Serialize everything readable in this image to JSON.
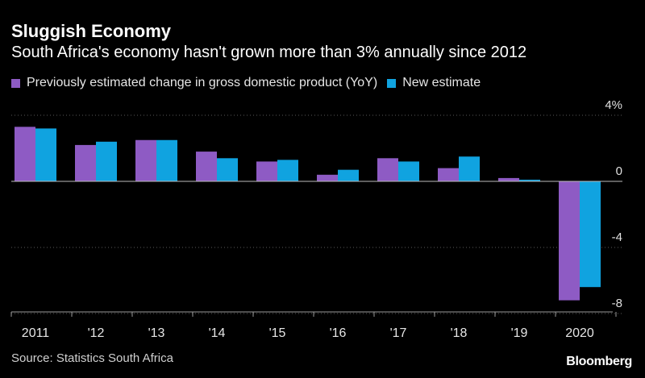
{
  "title": "Sluggish Economy",
  "subtitle": "South Africa's economy hasn't grown more than 3% annually since 2012",
  "source": "Source: Statistics South Africa",
  "logo": "Bloomberg",
  "colors": {
    "previous": "#8e5bc4",
    "new": "#10a3e0"
  },
  "chart_data": {
    "type": "bar",
    "title": "",
    "xlabel": "",
    "ylabel": "",
    "categories": [
      "2011",
      "'12",
      "'13",
      "'14",
      "'15",
      "'16",
      "'17",
      "'18",
      "'19",
      "2020"
    ],
    "series": [
      {
        "name": "Previously estimated change in gross domestic product (YoY)",
        "values": [
          3.3,
          2.2,
          2.5,
          1.8,
          1.2,
          0.4,
          1.4,
          0.8,
          0.2,
          -7.2
        ]
      },
      {
        "name": "New estimate",
        "values": [
          3.2,
          2.4,
          2.5,
          1.4,
          1.3,
          0.7,
          1.2,
          1.5,
          0.1,
          -6.4
        ]
      }
    ],
    "yticks": [
      "4%",
      "0",
      "-4",
      "-8"
    ],
    "ylim": [
      -8,
      4
    ],
    "legend_position": "top-left"
  }
}
